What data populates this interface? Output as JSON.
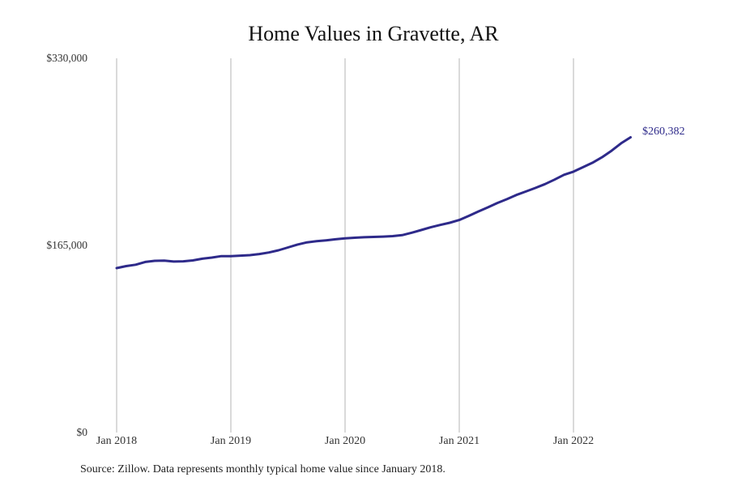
{
  "chart_data": {
    "type": "line",
    "title": "Home Values in Gravette, AR",
    "xlabel": "",
    "ylabel": "",
    "ylim": [
      0,
      330000
    ],
    "yticks": [
      0,
      165000,
      330000
    ],
    "ytick_labels": [
      "$0",
      "$165,000",
      "$330,000"
    ],
    "xticks": [
      "Jan 2018",
      "Jan 2019",
      "Jan 2020",
      "Jan 2021",
      "Jan 2022"
    ],
    "grid": {
      "vertical": true,
      "horizontal": false
    },
    "legend": null,
    "line_color": "#2e2a8a",
    "end_label": "$260,382",
    "series": [
      {
        "name": "Typical home value",
        "start": "2018-01",
        "frequency": "monthly",
        "x": [
          "2018-01",
          "2018-02",
          "2018-03",
          "2018-04",
          "2018-05",
          "2018-06",
          "2018-07",
          "2018-08",
          "2018-09",
          "2018-10",
          "2018-11",
          "2018-12",
          "2019-01",
          "2019-02",
          "2019-03",
          "2019-04",
          "2019-05",
          "2019-06",
          "2019-07",
          "2019-08",
          "2019-09",
          "2019-10",
          "2019-11",
          "2019-12",
          "2020-01",
          "2020-02",
          "2020-03",
          "2020-04",
          "2020-05",
          "2020-06",
          "2020-07",
          "2020-08",
          "2020-09",
          "2020-10",
          "2020-11",
          "2020-12",
          "2021-01",
          "2021-02",
          "2021-03",
          "2021-04",
          "2021-05",
          "2021-06",
          "2021-07",
          "2021-08",
          "2021-09",
          "2021-10",
          "2021-11",
          "2021-12",
          "2022-01",
          "2022-02",
          "2022-03",
          "2022-04",
          "2022-05",
          "2022-06",
          "2022-07"
        ],
        "values": [
          145000,
          146800,
          148000,
          150400,
          151400,
          151600,
          150800,
          151000,
          151800,
          153300,
          154300,
          155600,
          155600,
          156000,
          156400,
          157400,
          158800,
          160700,
          163200,
          165800,
          167700,
          168700,
          169500,
          170400,
          171300,
          171800,
          172200,
          172500,
          172800,
          173200,
          174100,
          176200,
          178600,
          181000,
          183100,
          185000,
          187400,
          191100,
          194900,
          198600,
          202400,
          205800,
          209500,
          212600,
          215700,
          219100,
          223000,
          227300,
          230100,
          234000,
          237900,
          242800,
          248500,
          255100,
          260382
        ]
      }
    ]
  },
  "header": {
    "title": "Home Values in Gravette, AR"
  },
  "axes": {
    "y_labels": [
      "$330,000",
      "$165,000",
      "$0"
    ],
    "x_labels": [
      "Jan 2018",
      "Jan 2019",
      "Jan 2020",
      "Jan 2021",
      "Jan 2022"
    ]
  },
  "annotation": {
    "end_value": "$260,382"
  },
  "footer": {
    "source": "Source: Zillow. Data represents monthly typical home value since January 2018."
  }
}
